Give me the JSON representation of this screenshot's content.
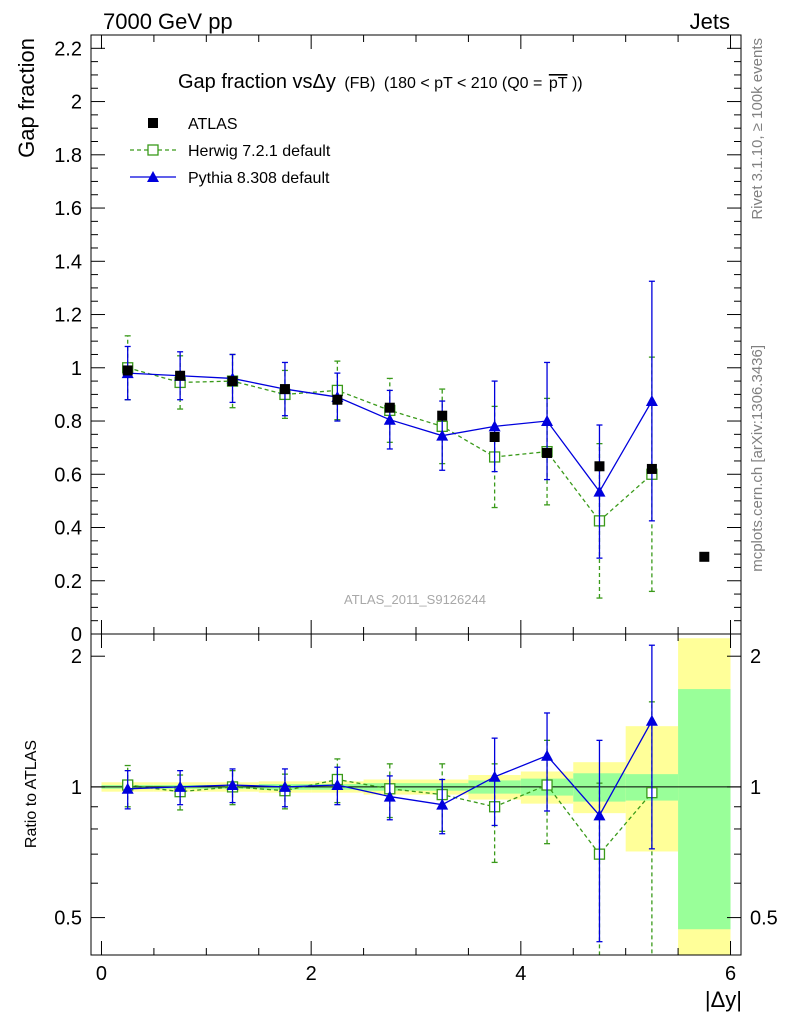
{
  "header": {
    "left": "7000 GeV pp",
    "right": "Jets"
  },
  "side_labels": {
    "rivet": "Rivet 3.1.10, ≥ 100k events",
    "mcplots": "mcplots.cern.ch [arXiv:1306.3436]"
  },
  "chart_data": [
    {
      "type": "scatter",
      "title": "Gap fraction vsΔy",
      "title_small": "(FB)",
      "title_cut": "(180 < pT < 210 (Q0 =",
      "title_cut_over": "pT",
      "title_cut_end": "))",
      "ylabel": "Gap fraction",
      "watermark": "ATLAS_2011_S9126244",
      "xlim": [
        -0.1,
        6.1
      ],
      "ylim": [
        0,
        2.25
      ],
      "yticks": [
        {
          "value": 0,
          "label": "0"
        },
        {
          "value": 0.2,
          "label": "0.2"
        },
        {
          "value": 0.4,
          "label": "0.4"
        },
        {
          "value": 0.6,
          "label": "0.6"
        },
        {
          "value": 0.8,
          "label": "0.8"
        },
        {
          "value": 1.0,
          "label": "1"
        },
        {
          "value": 1.2,
          "label": "1.2"
        },
        {
          "value": 1.4,
          "label": "1.4"
        },
        {
          "value": 1.6,
          "label": "1.6"
        },
        {
          "value": 1.8,
          "label": "1.8"
        },
        {
          "value": 2.0,
          "label": "2"
        },
        {
          "value": 2.2,
          "label": "2.2"
        }
      ],
      "legend": [
        {
          "label": "ATLAS",
          "color": "#000000",
          "marker": "square-filled"
        },
        {
          "label": "Herwig 7.2.1 default",
          "color": "#3a9a1a",
          "marker": "square-open",
          "dash": true
        },
        {
          "label": "Pythia 8.308 default",
          "color": "#0000dd",
          "marker": "triangle-filled"
        }
      ],
      "series": [
        {
          "name": "ATLAS",
          "x": [
            0.25,
            0.75,
            1.25,
            1.75,
            2.25,
            2.75,
            3.25,
            3.75,
            4.25,
            4.75,
            5.25,
            5.75
          ],
          "y": [
            0.99,
            0.97,
            0.95,
            0.92,
            0.88,
            0.85,
            0.82,
            0.74,
            0.68,
            0.63,
            0.62,
            0.29
          ]
        },
        {
          "name": "Herwig 7.2.1 default",
          "x": [
            0.25,
            0.75,
            1.25,
            1.75,
            2.25,
            2.75,
            3.25,
            3.75,
            4.25,
            4.75,
            5.25
          ],
          "y": [
            1.0,
            0.945,
            0.95,
            0.9,
            0.915,
            0.84,
            0.78,
            0.665,
            0.685,
            0.425,
            0.6
          ],
          "err_lo": [
            0.12,
            0.1,
            0.1,
            0.09,
            0.11,
            0.12,
            0.14,
            0.19,
            0.2,
            0.29,
            0.44
          ],
          "err_hi": [
            0.12,
            0.1,
            0.1,
            0.09,
            0.11,
            0.12,
            0.14,
            0.19,
            0.2,
            0.29,
            0.44
          ]
        },
        {
          "name": "Pythia 8.308 default",
          "x": [
            0.25,
            0.75,
            1.25,
            1.75,
            2.25,
            2.75,
            3.25,
            3.75,
            4.25,
            4.75,
            5.25
          ],
          "y": [
            0.98,
            0.97,
            0.96,
            0.92,
            0.89,
            0.805,
            0.745,
            0.78,
            0.8,
            0.535,
            0.875
          ],
          "err_lo": [
            0.1,
            0.09,
            0.09,
            0.1,
            0.09,
            0.11,
            0.13,
            0.17,
            0.22,
            0.25,
            0.45
          ],
          "err_hi": [
            0.1,
            0.09,
            0.09,
            0.1,
            0.09,
            0.11,
            0.13,
            0.17,
            0.22,
            0.25,
            0.45
          ]
        }
      ]
    },
    {
      "type": "scatter",
      "title": "",
      "ylabel": "Ratio to ATLAS",
      "xlabel": "|Δy|",
      "scale": "log",
      "xlim": [
        -0.1,
        6.1
      ],
      "ylim": [
        0.41,
        2.25
      ],
      "xticks": [
        {
          "value": 0,
          "label": "0"
        },
        {
          "value": 2,
          "label": "2"
        },
        {
          "value": 4,
          "label": "4"
        },
        {
          "value": 6,
          "label": "6"
        }
      ],
      "yticks": [
        {
          "value": 0.5,
          "label": "0.5"
        },
        {
          "value": 1,
          "label": "1"
        },
        {
          "value": 2,
          "label": "2"
        }
      ],
      "bands": {
        "x_lo": [
          0,
          0.5,
          1.0,
          1.5,
          2.0,
          2.5,
          3.0,
          3.5,
          4.0,
          4.5,
          5.0,
          5.5
        ],
        "x_hi": [
          0.5,
          1.0,
          1.5,
          2.0,
          2.5,
          3.0,
          3.5,
          4.0,
          4.5,
          5.0,
          5.5,
          6.0
        ],
        "inner_lo": [
          0.99,
          0.99,
          0.99,
          0.985,
          0.985,
          0.98,
          0.98,
          0.965,
          0.955,
          0.925,
          0.93,
          0.47
        ],
        "inner_hi": [
          1.01,
          1.01,
          1.01,
          1.015,
          1.015,
          1.02,
          1.02,
          1.035,
          1.045,
          1.075,
          1.07,
          1.68
        ],
        "outer_lo": [
          0.975,
          0.975,
          0.975,
          0.97,
          0.97,
          0.96,
          0.96,
          0.935,
          0.915,
          0.87,
          0.71,
          0.41
        ],
        "outer_hi": [
          1.025,
          1.025,
          1.025,
          1.03,
          1.03,
          1.04,
          1.04,
          1.065,
          1.085,
          1.14,
          1.38,
          2.2
        ],
        "inner_color": "#99ff99",
        "outer_color": "#ffff99"
      },
      "series": [
        {
          "name": "Herwig 7.2.1 default",
          "x": [
            0.25,
            0.75,
            1.25,
            1.75,
            2.25,
            2.75,
            3.25,
            3.75,
            4.25,
            4.75,
            5.25
          ],
          "y": [
            1.01,
            0.975,
            1.0,
            0.98,
            1.04,
            0.99,
            0.96,
            0.9,
            1.01,
            0.7,
            0.97
          ],
          "err_lo": [
            0.11,
            0.09,
            0.09,
            0.09,
            0.12,
            0.14,
            0.17,
            0.23,
            0.27,
            0.32,
            0.6
          ],
          "err_hi": [
            0.11,
            0.09,
            0.09,
            0.09,
            0.12,
            0.14,
            0.17,
            0.23,
            0.27,
            0.32,
            0.6
          ]
        },
        {
          "name": "Pythia 8.308 default",
          "x": [
            0.25,
            0.75,
            1.25,
            1.75,
            2.25,
            2.75,
            3.25,
            3.75,
            4.25,
            4.75,
            5.25
          ],
          "y": [
            0.99,
            1.0,
            1.01,
            1.0,
            1.01,
            0.95,
            0.91,
            1.055,
            1.18,
            0.86,
            1.42
          ],
          "err_lo": [
            0.1,
            0.09,
            0.09,
            0.1,
            0.1,
            0.11,
            0.13,
            0.24,
            0.3,
            0.42,
            0.7
          ],
          "err_hi": [
            0.1,
            0.09,
            0.09,
            0.1,
            0.1,
            0.11,
            0.13,
            0.24,
            0.3,
            0.42,
            0.7
          ]
        }
      ]
    }
  ]
}
